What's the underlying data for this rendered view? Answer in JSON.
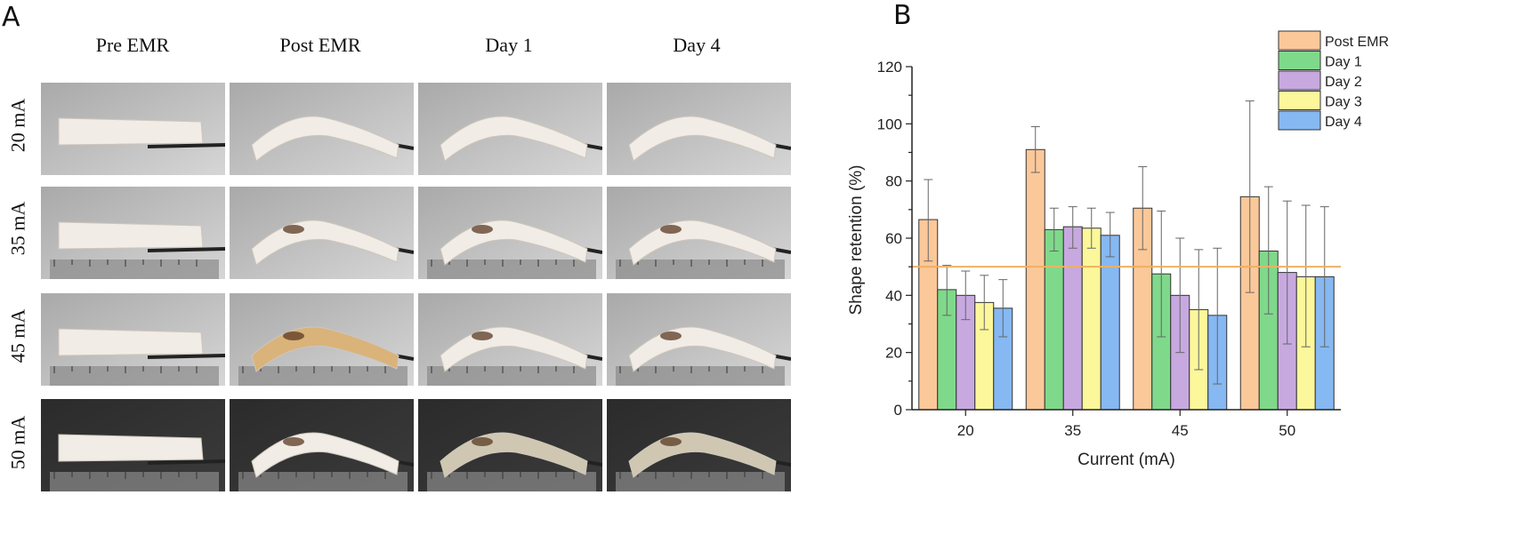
{
  "panel_a": {
    "letter": "A",
    "columns": [
      "Pre EMR",
      "Post EMR",
      "Day 1",
      "Day 4"
    ],
    "rows": [
      "20 mA",
      "35 mA",
      "45 mA",
      "50 mA"
    ]
  },
  "panel_b": {
    "letter": "B"
  },
  "colors": {
    "Post EMR": "#fbc89a",
    "Day 1": "#7fd98a",
    "Day 2": "#c7a9e0",
    "Day 3": "#fbf79a",
    "Day 4": "#86b8f2",
    "threshold": "#f0b060"
  },
  "chart_data": {
    "type": "bar",
    "xlabel": "Current (mA)",
    "ylabel": "Shape retention (%)",
    "categories": [
      "20",
      "35",
      "45",
      "50"
    ],
    "ylim": [
      0,
      120
    ],
    "yticks": [
      0,
      20,
      40,
      60,
      80,
      100,
      120
    ],
    "threshold": 50,
    "legend_position": "top-right",
    "series": [
      {
        "name": "Post EMR",
        "values": [
          66.5,
          91,
          70.5,
          74.5
        ],
        "error_low": [
          52,
          83,
          56,
          41
        ],
        "error_high": [
          80.5,
          99,
          85,
          108
        ]
      },
      {
        "name": "Day 1",
        "values": [
          42,
          63,
          47.5,
          55.5
        ],
        "error_low": [
          33,
          55.5,
          25.5,
          33.5
        ],
        "error_high": [
          50.5,
          70.5,
          69.5,
          78
        ]
      },
      {
        "name": "Day 2",
        "values": [
          40,
          64,
          40,
          48
        ],
        "error_low": [
          31.5,
          56.5,
          20,
          23
        ],
        "error_high": [
          48.5,
          71,
          60,
          73
        ]
      },
      {
        "name": "Day 3",
        "values": [
          37.5,
          63.5,
          35,
          46.5
        ],
        "error_low": [
          28,
          56.5,
          14,
          22
        ],
        "error_high": [
          47,
          70.5,
          56,
          71.5
        ]
      },
      {
        "name": "Day 4",
        "values": [
          35.5,
          61,
          33,
          46.5
        ],
        "error_low": [
          25.5,
          53.5,
          9,
          22
        ],
        "error_high": [
          45.5,
          69,
          56.5,
          71
        ]
      }
    ]
  }
}
